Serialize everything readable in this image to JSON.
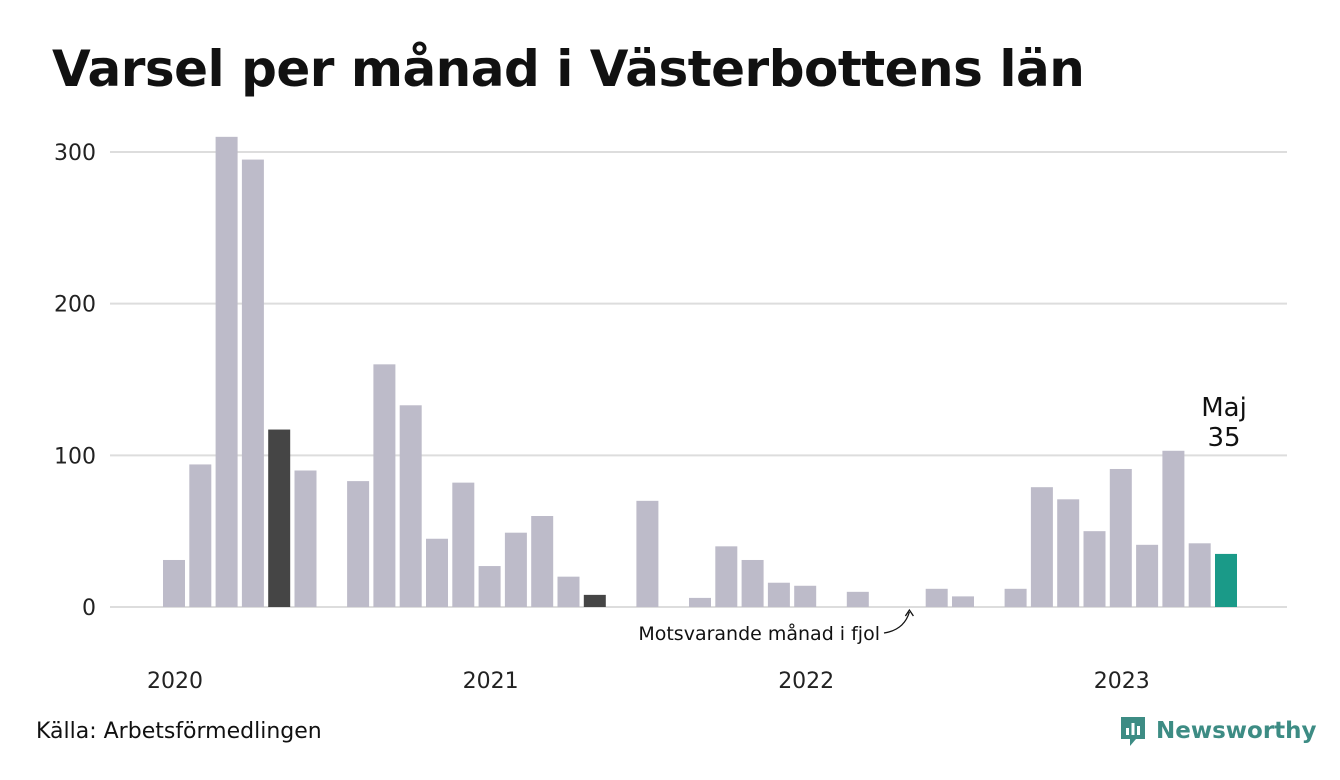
{
  "chart_data": {
    "type": "bar",
    "title": "Varsel per månad i Västerbottens län",
    "categories": [
      "2020-01",
      "2020-02",
      "2020-03",
      "2020-04",
      "2020-05",
      "2020-06",
      "2020-07",
      "2020-08",
      "2020-09",
      "2020-10",
      "2020-11",
      "2020-12",
      "2021-01",
      "2021-02",
      "2021-03",
      "2021-04",
      "2021-05",
      "2021-06",
      "2021-07",
      "2021-08",
      "2021-09",
      "2021-10",
      "2021-11",
      "2021-12",
      "2022-01",
      "2022-02",
      "2022-03",
      "2022-04",
      "2022-05",
      "2022-06",
      "2022-07",
      "2022-08",
      "2022-09",
      "2022-10",
      "2022-11",
      "2022-12",
      "2023-01",
      "2023-02",
      "2023-03",
      "2023-04",
      "2023-05"
    ],
    "values": [
      31,
      94,
      310,
      295,
      117,
      90,
      0,
      83,
      160,
      133,
      45,
      82,
      27,
      49,
      60,
      20,
      8,
      0,
      70,
      0,
      6,
      40,
      31,
      16,
      14,
      0,
      10,
      0,
      0,
      12,
      7,
      0,
      12,
      79,
      71,
      50,
      91,
      41,
      103,
      42,
      35
    ],
    "highlight_dark_indices": [
      4,
      16
    ],
    "highlight_current_index": 40,
    "ylim": [
      0,
      310
    ],
    "yticks": [
      0,
      100,
      200,
      300
    ],
    "xtick_labels": [
      {
        "label": "2020",
        "index": 0
      },
      {
        "label": "2021",
        "index": 12
      },
      {
        "label": "2022",
        "index": 24
      },
      {
        "label": "2023",
        "index": 36
      }
    ],
    "xlabel": "",
    "ylabel": "",
    "grid": true,
    "legend": "none",
    "colors": {
      "bar": "#bdbbc9",
      "highlight_dark": "#454545",
      "highlight_current": "#1a9a88",
      "grid": "#dddddd"
    },
    "annotations": {
      "current_month": "Maj",
      "current_value": "35",
      "same_month_last_year": "Motsvarande månad i fjol"
    }
  },
  "source": "Källa: Arbetsförmedlingen",
  "brand": {
    "name": "Newsworthy",
    "icon": "newsworthy-logo-icon",
    "color": "#3d8c84"
  }
}
